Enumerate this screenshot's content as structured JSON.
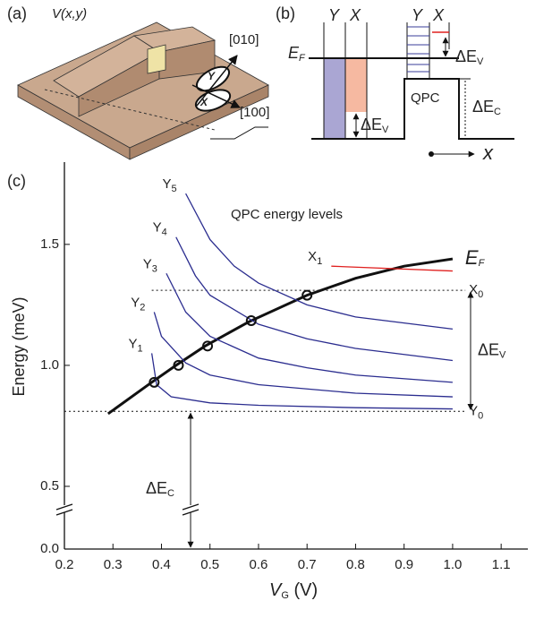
{
  "panel_a": {
    "label": "(a)",
    "potential": "V(x,y)",
    "dir_010": "[010]",
    "dir_100": "[100]",
    "y_label": "Y",
    "x_label": "X"
  },
  "panel_b": {
    "label": "(b)",
    "top_labels": [
      "Y",
      "X",
      "Y",
      "X"
    ],
    "fermi": {
      "main": "E",
      "sub": "F"
    },
    "delta_ev_left": {
      "main": "ΔE",
      "sub": "V"
    },
    "delta_ev_right": {
      "main": "ΔE",
      "sub": "V"
    },
    "delta_ec": {
      "main": "ΔE",
      "sub": "C"
    },
    "qpc": "QPC",
    "axis": "x"
  },
  "chart_data": {
    "type": "line",
    "panel_label": "(c)",
    "annotation": "QPC energy levels",
    "xlabel": {
      "main": "V",
      "sub": "G",
      "after": " (V)"
    },
    "ylabel": "Energy (meV)",
    "xlim": [
      0.2,
      1.155
    ],
    "ylim": [
      0,
      1.84
    ],
    "ybreak": 0.5,
    "xticks": [
      0.2,
      0.3,
      0.4,
      0.5,
      0.6,
      0.7,
      0.8,
      0.9,
      {
        "value": 1,
        "label": "1.0"
      },
      1.1
    ],
    "yticks": [
      {
        "value": 0,
        "label": "0.0"
      },
      0.5,
      {
        "value": 1,
        "label": "1.0"
      },
      1.5
    ],
    "series": [
      {
        "name": {
          "main": "E",
          "sub": "F"
        },
        "color": "#111111",
        "line_width": 3,
        "label_at": "end",
        "x": [
          0.29,
          0.38,
          0.43,
          0.49,
          0.58,
          0.7,
          0.8,
          0.9,
          1.0
        ],
        "values": [
          0.8,
          0.93,
          1.0,
          1.08,
          1.18,
          1.29,
          1.36,
          1.41,
          1.44
        ]
      },
      {
        "name": {
          "main": "Y",
          "sub": "1"
        },
        "color": "#2b2d8f",
        "line_width": 1.3,
        "label_at": "start",
        "x": [
          0.38,
          0.39,
          0.42,
          0.5,
          0.6,
          0.8,
          1.0
        ],
        "values": [
          1.05,
          0.92,
          0.87,
          0.845,
          0.835,
          0.825,
          0.82
        ]
      },
      {
        "name": {
          "main": "Y",
          "sub": "2"
        },
        "color": "#2b2d8f",
        "line_width": 1.3,
        "label_at": "start",
        "x": [
          0.385,
          0.4,
          0.45,
          0.5,
          0.6,
          0.8,
          1.0
        ],
        "values": [
          1.22,
          1.12,
          1.01,
          0.96,
          0.92,
          0.885,
          0.87
        ]
      },
      {
        "name": {
          "main": "Y",
          "sub": "3"
        },
        "color": "#2b2d8f",
        "line_width": 1.3,
        "label_at": "start",
        "x": [
          0.41,
          0.45,
          0.5,
          0.6,
          0.7,
          0.8,
          1.0
        ],
        "values": [
          1.38,
          1.22,
          1.12,
          1.03,
          0.99,
          0.96,
          0.93
        ]
      },
      {
        "name": {
          "main": "Y",
          "sub": "4"
        },
        "color": "#2b2d8f",
        "line_width": 1.3,
        "label_at": "start",
        "x": [
          0.43,
          0.47,
          0.5,
          0.6,
          0.7,
          0.8,
          1.0
        ],
        "values": [
          1.53,
          1.37,
          1.29,
          1.17,
          1.11,
          1.07,
          1.02
        ]
      },
      {
        "name": {
          "main": "Y",
          "sub": "5"
        },
        "color": "#2b2d8f",
        "line_width": 1.3,
        "label_at": "start",
        "x": [
          0.45,
          0.5,
          0.55,
          0.6,
          0.7,
          0.8,
          1.0
        ],
        "values": [
          1.71,
          1.52,
          1.41,
          1.34,
          1.25,
          1.2,
          1.15
        ]
      },
      {
        "name": {
          "main": "X",
          "sub": "1"
        },
        "color": "#e0201f",
        "line_width": 1.3,
        "label_at": "start",
        "x": [
          0.75,
          1.0
        ],
        "values": [
          1.41,
          1.39
        ]
      }
    ],
    "markers": {
      "x": [
        0.385,
        0.435,
        0.495,
        0.585,
        0.7
      ],
      "values": [
        0.93,
        1.0,
        1.08,
        1.185,
        1.29
      ]
    },
    "levels": [
      {
        "name": {
          "main": "X",
          "sub": "0"
        },
        "value": 1.31,
        "from": 0.38,
        "to": 1.1
      },
      {
        "name": {
          "main": "Y",
          "sub": "0"
        },
        "value": 0.81,
        "from": 0.2,
        "to": 1.1
      }
    ],
    "delta_ev": {
      "label": {
        "main": "ΔE",
        "sub": "V"
      },
      "x": 1.037
    },
    "delta_ec": {
      "label": {
        "main": "ΔE",
        "sub": "C"
      },
      "x": 0.46
    }
  }
}
